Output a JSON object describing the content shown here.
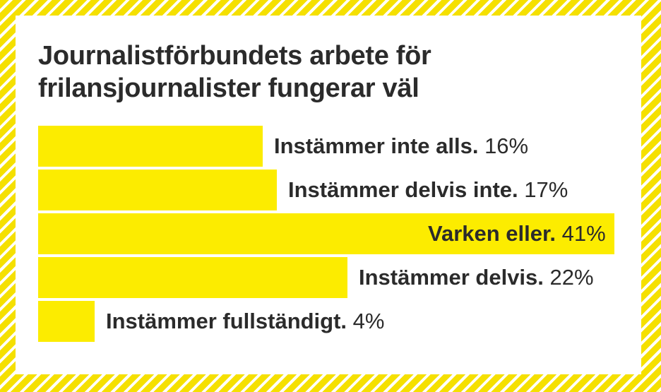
{
  "chart_data": {
    "type": "bar",
    "orientation": "horizontal",
    "title": "Journalistförbundets arbete för frilansjournalister fungerar väl",
    "categories": [
      "Instämmer inte alls.",
      "Instämmer delvis inte.",
      "Varken eller.",
      "Instämmer delvis.",
      "Instämmer fullständigt."
    ],
    "values": [
      16,
      17,
      41,
      22,
      4
    ],
    "value_labels": [
      "16%",
      "17%",
      "41%",
      "22%",
      "4%"
    ],
    "xlim": [
      0,
      41
    ],
    "grid": false,
    "bar_color": "#fcec00",
    "text_color": "#2b2b2b"
  }
}
